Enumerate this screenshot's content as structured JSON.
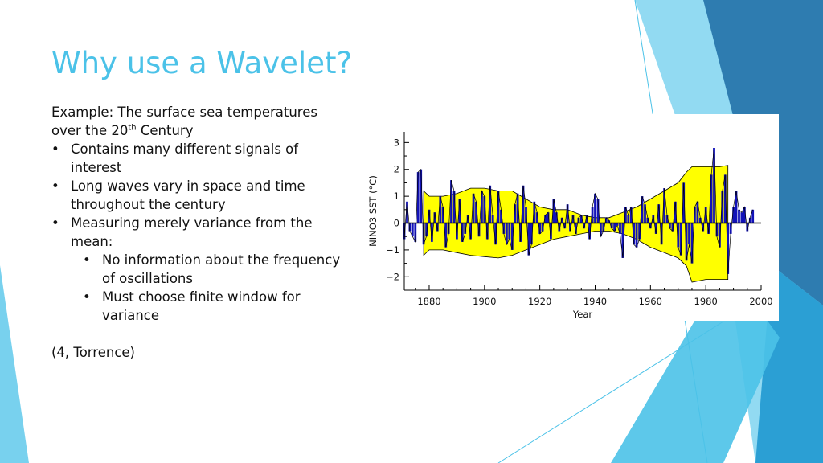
{
  "colors": {
    "title": "#4BC2E8",
    "band_fill": "#FFFF00",
    "bar_fill": "#1212B8",
    "accent_dark": "#2E7CB0",
    "accent_light": "#7FD3F0"
  },
  "slide": {
    "title": "Why use a Wavelet?",
    "intro_pre": "Example: The surface sea temperatures over the 20",
    "intro_sup": "th",
    "intro_post": " Century",
    "bullets": [
      {
        "marker": "•",
        "text": "Contains many different signals of interest"
      },
      {
        "marker": "•",
        "text": "Long waves vary in space and time throughout the century"
      },
      {
        "marker": "•",
        "text": "Measuring merely variance from the mean:"
      }
    ],
    "subbullets": [
      {
        "marker": "•",
        "text": "No information about the frequency of oscillations"
      },
      {
        "marker": "•",
        "text": "Must choose finite window for variance"
      }
    ],
    "citation": "(4, Torrence)"
  },
  "chart_data": {
    "type": "area",
    "title": "",
    "xlabel": "Year",
    "ylabel": "NINO3 SST (°C)",
    "xlim": [
      1871,
      2000
    ],
    "ylim": [
      -2.5,
      3.4
    ],
    "xticks": [
      1880,
      1900,
      1920,
      1940,
      1960,
      1980,
      2000
    ],
    "xtick_labels": [
      "1880",
      "1900",
      "1920",
      "1940",
      "1960",
      "1980",
      "2000"
    ],
    "yticks": [
      3,
      2,
      1,
      0,
      -1,
      -2
    ],
    "ytick_labels": [
      "3",
      "2",
      "1",
      "0",
      "−1",
      "−2"
    ],
    "grid": false,
    "series": [
      {
        "kind": "band",
        "x": [
          1878,
          1880,
          1885,
          1890,
          1895,
          1900,
          1905,
          1910,
          1915,
          1920,
          1925,
          1930,
          1935,
          1940,
          1945,
          1950,
          1955,
          1960,
          1965,
          1970,
          1973,
          1975,
          1980,
          1985,
          1988
        ],
        "upper": [
          1.2,
          1.0,
          1.0,
          1.1,
          1.3,
          1.3,
          1.2,
          1.2,
          0.9,
          0.6,
          0.5,
          0.5,
          0.3,
          0.2,
          0.2,
          0.4,
          0.6,
          0.9,
          1.2,
          1.5,
          1.9,
          2.1,
          2.1,
          2.1,
          2.15
        ],
        "lower": [
          -1.2,
          -1.0,
          -1.0,
          -1.1,
          -1.2,
          -1.25,
          -1.3,
          -1.2,
          -1.0,
          -0.8,
          -0.6,
          -0.5,
          -0.4,
          -0.3,
          -0.3,
          -0.4,
          -0.6,
          -0.9,
          -1.1,
          -1.3,
          -1.6,
          -2.2,
          -2.1,
          -2.1,
          -2.1
        ]
      },
      {
        "kind": "anomaly",
        "x": [
          1871,
          1872,
          1873,
          1874,
          1875,
          1876,
          1877,
          1878,
          1879,
          1880,
          1881,
          1882,
          1883,
          1884,
          1885,
          1886,
          1887,
          1888,
          1889,
          1890,
          1891,
          1892,
          1893,
          1894,
          1895,
          1896,
          1897,
          1898,
          1899,
          1900,
          1901,
          1902,
          1903,
          1904,
          1905,
          1906,
          1907,
          1908,
          1909,
          1910,
          1911,
          1912,
          1913,
          1914,
          1915,
          1916,
          1917,
          1918,
          1919,
          1920,
          1921,
          1922,
          1923,
          1924,
          1925,
          1926,
          1927,
          1928,
          1929,
          1930,
          1931,
          1932,
          1933,
          1934,
          1935,
          1936,
          1937,
          1938,
          1939,
          1940,
          1941,
          1942,
          1943,
          1944,
          1945,
          1946,
          1947,
          1948,
          1949,
          1950,
          1951,
          1952,
          1953,
          1954,
          1955,
          1956,
          1957,
          1958,
          1959,
          1960,
          1961,
          1962,
          1963,
          1964,
          1965,
          1966,
          1967,
          1968,
          1969,
          1970,
          1971,
          1972,
          1973,
          1974,
          1975,
          1976,
          1977,
          1978,
          1979,
          1980,
          1981,
          1982,
          1983,
          1984,
          1985,
          1986,
          1987,
          1988,
          1989,
          1990,
          1991,
          1992,
          1993,
          1994,
          1995,
          1996,
          1997
        ],
        "values": [
          -0.6,
          0.8,
          -0.3,
          -0.5,
          -0.7,
          1.9,
          2.0,
          -0.8,
          -0.5,
          0.5,
          -0.7,
          0.4,
          -0.3,
          1.0,
          0.6,
          -0.9,
          -0.4,
          1.6,
          1.2,
          -0.6,
          0.9,
          -0.7,
          -0.4,
          0.3,
          -0.6,
          1.1,
          0.8,
          -0.5,
          1.2,
          1.0,
          -0.6,
          1.4,
          0.3,
          -0.8,
          1.2,
          0.5,
          -0.4,
          -0.8,
          -0.6,
          -1.0,
          0.7,
          1.1,
          -0.7,
          1.4,
          0.6,
          -1.2,
          -0.8,
          0.8,
          0.4,
          -0.4,
          -0.3,
          0.3,
          0.4,
          -0.6,
          0.9,
          0.4,
          -0.3,
          0.2,
          -0.2,
          0.7,
          -0.3,
          0.3,
          -0.4,
          0.2,
          0.3,
          -0.2,
          0.3,
          -0.6,
          0.6,
          1.1,
          0.9,
          -0.5,
          -0.3,
          0.2,
          0.1,
          -0.2,
          -0.3,
          -0.1,
          -0.4,
          -1.3,
          0.6,
          0.3,
          0.6,
          -0.8,
          -0.9,
          -0.6,
          1.0,
          0.7,
          0.2,
          -0.2,
          0.3,
          -0.4,
          0.7,
          -0.8,
          1.3,
          0.3,
          -0.2,
          -0.3,
          0.8,
          -0.9,
          -1.2,
          1.5,
          -1.4,
          -0.8,
          -1.5,
          0.6,
          0.8,
          0.2,
          -0.3,
          0.6,
          -0.4,
          1.8,
          2.8,
          -0.5,
          -0.9,
          1.2,
          1.8,
          -1.9,
          -0.4,
          0.6,
          1.2,
          0.5,
          0.4,
          0.6,
          -0.3,
          0.2,
          0.5
        ]
      }
    ]
  }
}
